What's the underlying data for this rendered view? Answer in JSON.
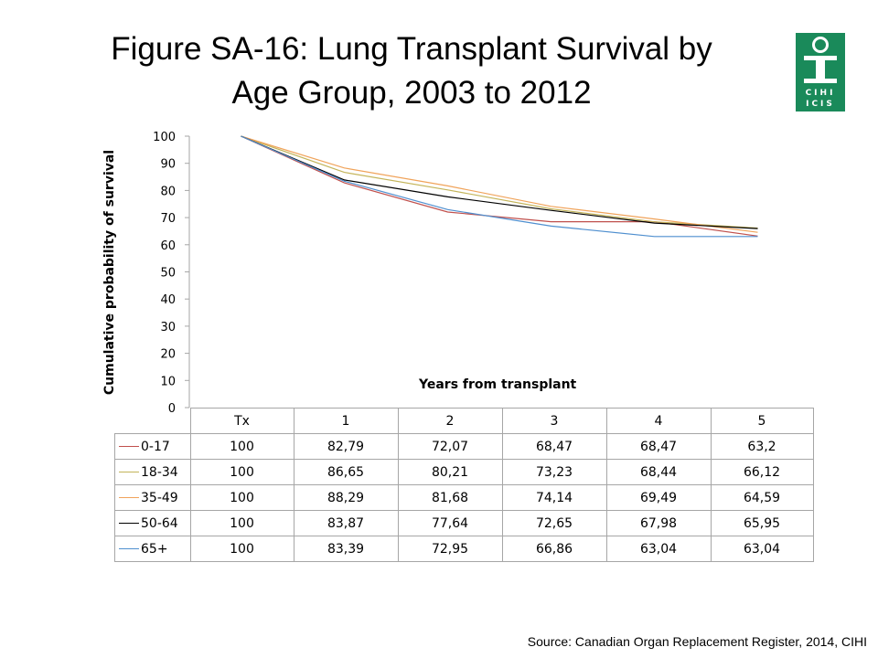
{
  "title": {
    "line1": "Figure SA-16: Lung Transplant Survival by",
    "line2": "Age Group, 2003 to 2012"
  },
  "logo": {
    "text_top": "CIHI",
    "text_bottom": "ICIS",
    "color": "#1a8a5a",
    "icon": "cihi-logo"
  },
  "source": "Source: Canadian Organ Replacement Register, 2014, CIHI",
  "chart_data": {
    "type": "line",
    "title": "",
    "xlabel": "Years from transplant",
    "ylabel": "Cumulative probability of survival",
    "categories": [
      "Tx",
      "1",
      "2",
      "3",
      "4",
      "5"
    ],
    "ylim": [
      0,
      100
    ],
    "yticks": [
      "0",
      "10",
      "20",
      "30",
      "40",
      "50",
      "60",
      "70",
      "80",
      "90",
      "100"
    ],
    "grid": false,
    "legend": "data-table",
    "series": [
      {
        "name": "0-17",
        "color": "#c0504d",
        "values": [
          100,
          82.79,
          72.07,
          68.47,
          68.47,
          63.2
        ],
        "labels": [
          "100",
          "82,79",
          "72,07",
          "68,47",
          "68,47",
          "63,2"
        ]
      },
      {
        "name": "18-34",
        "color": "#c3b45a",
        "values": [
          100,
          86.65,
          80.21,
          73.23,
          68.44,
          66.12
        ],
        "labels": [
          "100",
          "86,65",
          "80,21",
          "73,23",
          "68,44",
          "66,12"
        ]
      },
      {
        "name": "35-49",
        "color": "#f0a35a",
        "values": [
          100,
          88.29,
          81.68,
          74.14,
          69.49,
          64.59
        ],
        "labels": [
          "100",
          "88,29",
          "81,68",
          "74,14",
          "69,49",
          "64,59"
        ]
      },
      {
        "name": "50-64",
        "color": "#000000",
        "values": [
          100,
          83.87,
          77.64,
          72.65,
          67.98,
          65.95
        ],
        "labels": [
          "100",
          "83,87",
          "77,64",
          "72,65",
          "67,98",
          "65,95"
        ]
      },
      {
        "name": "65+",
        "color": "#4f8fcf",
        "values": [
          100,
          83.39,
          72.95,
          66.86,
          63.04,
          63.04
        ],
        "labels": [
          "100",
          "83,39",
          "72,95",
          "66,86",
          "63,04",
          "63,04"
        ]
      }
    ]
  }
}
